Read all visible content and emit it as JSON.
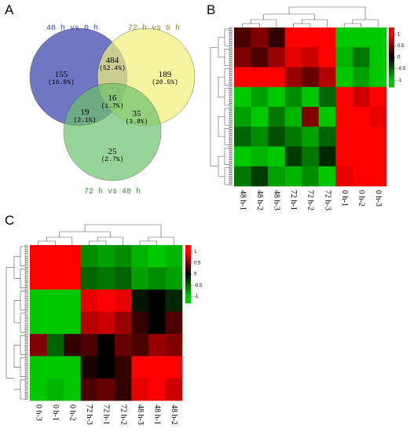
{
  "panels": {
    "A": {
      "label": "A",
      "sets": [
        "48 h vs 0 h",
        "72 h vs 0 h",
        "72 h vs 48 h"
      ],
      "regions": [
        {
          "count": 155,
          "percent": "(16.8%)"
        },
        {
          "count": 484,
          "percent": "(52.4%)"
        },
        {
          "count": 189,
          "percent": "(20.5%)"
        },
        {
          "count": 19,
          "percent": "(2.1%)"
        },
        {
          "count": 16,
          "percent": "(1.7%)"
        },
        {
          "count": 35,
          "percent": "(3.8%)"
        },
        {
          "count": 25,
          "percent": "(2.7%)"
        }
      ]
    },
    "B": {
      "label": "B",
      "heatmap": {
        "columns": [
          "48 h-1",
          "48 h-2",
          "48 h-3",
          "72 h-1",
          "72 h-2",
          "72 h-3",
          "0 h-1",
          "0 h-2",
          "0 h-3"
        ],
        "values": [
          [
            0.3,
            0.5,
            0.2,
            1,
            1,
            1,
            -1,
            -1,
            -1
          ],
          [
            0.5,
            0.3,
            0.6,
            0.9,
            0.8,
            1,
            -0.9,
            -0.6,
            -1
          ],
          [
            1,
            1,
            1,
            0.6,
            0.4,
            0.7,
            -1,
            -0.8,
            -1
          ],
          [
            -1,
            -0.8,
            -1,
            -0.7,
            -1,
            -0.5,
            1,
            0.8,
            1
          ],
          [
            -0.8,
            -1,
            -0.6,
            -0.9,
            0.5,
            -1,
            1,
            1,
            0.9
          ],
          [
            -0.5,
            -0.7,
            -0.4,
            -0.6,
            -0.8,
            -0.5,
            1,
            1,
            1
          ],
          [
            -1,
            -0.9,
            -1,
            -0.3,
            -0.6,
            -0.2,
            1,
            1,
            1
          ],
          [
            -0.6,
            -0.3,
            -0.8,
            -0.9,
            -0.7,
            -1,
            0.9,
            1,
            1
          ]
        ],
        "colorbar": {
          "lim": [
            -1.3,
            1.3
          ],
          "ticks": [
            1,
            0.5,
            0,
            -0.5,
            -1
          ]
        }
      }
    },
    "C": {
      "label": "C",
      "heatmap": {
        "columns": [
          "0 h-3",
          "0 h-1",
          "0 h-2",
          "72 h-3",
          "72 h-1",
          "72 h-2",
          "48 h-3",
          "48 h-1",
          "48 h-2"
        ],
        "values": [
          [
            1,
            1,
            1,
            -0.7,
            -0.8,
            -0.7,
            -0.9,
            -1,
            -0.9
          ],
          [
            1,
            1,
            1,
            -0.5,
            -0.6,
            -0.5,
            -0.8,
            -0.7,
            -0.8
          ],
          [
            -1,
            -1,
            -1,
            0.9,
            1,
            0.9,
            -0.1,
            0,
            -0.2
          ],
          [
            -1,
            -1,
            -1,
            0.7,
            0.8,
            0.6,
            0.2,
            0,
            0.3
          ],
          [
            0.5,
            -0.5,
            0.2,
            0.3,
            0,
            0.4,
            0.3,
            0.6,
            0.5
          ],
          [
            -1,
            -1,
            -1,
            0.1,
            0,
            0.2,
            1,
            1,
            1
          ],
          [
            -1,
            -0.9,
            -1,
            0.3,
            0.4,
            0.2,
            0.9,
            1,
            0.8
          ]
        ],
        "colorbar": {
          "lim": [
            -1.3,
            1.3
          ],
          "ticks": [
            1,
            0.5,
            0,
            -0.5,
            -1
          ]
        }
      }
    }
  }
}
